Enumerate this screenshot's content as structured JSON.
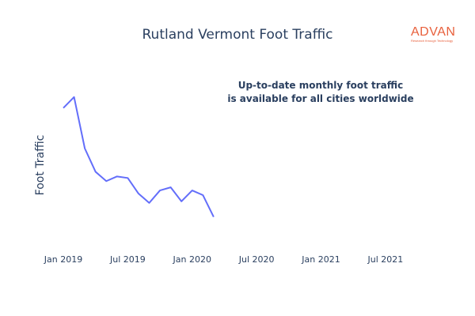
{
  "header": {
    "title": "Rutland Vermont Foot Traffic"
  },
  "brand": {
    "name": "ADVAN",
    "tagline": "Research through Technology",
    "color": "#e8603c"
  },
  "annotation": {
    "line1": "Up-to-date monthly foot traffic",
    "line2": "is available for all cities worldwide"
  },
  "chart_data": {
    "type": "line",
    "title": "Rutland Vermont Foot Traffic",
    "ylabel": "Foot Traffic",
    "xlabel": "",
    "line_color": "#636efa",
    "y_axis_tick_labels": "hidden",
    "grid": false,
    "xlim": [
      "2019-01",
      "2021-09"
    ],
    "x_ticks": [
      {
        "date": "2019-01",
        "label": "Jan 2019"
      },
      {
        "date": "2019-07",
        "label": "Jul 2019"
      },
      {
        "date": "2020-01",
        "label": "Jan 2020"
      },
      {
        "date": "2020-07",
        "label": "Jul 2020"
      },
      {
        "date": "2021-01",
        "label": "Jan 2021"
      },
      {
        "date": "2021-07",
        "label": "Jul 2021"
      }
    ],
    "ylim": [
      0,
      100
    ],
    "series": [
      {
        "x": [
          "2019-01",
          "2019-02",
          "2019-03",
          "2019-04",
          "2019-05",
          "2019-06",
          "2019-07",
          "2019-08",
          "2019-09",
          "2019-10",
          "2019-11",
          "2019-12",
          "2020-01",
          "2020-02",
          "2020-03",
          "2020-04",
          "2020-05"
        ],
        "values": [
          89,
          96,
          63,
          48,
          42,
          45,
          44,
          34,
          28,
          36,
          38,
          29,
          36,
          33,
          19,
          null,
          null
        ]
      }
    ]
  }
}
